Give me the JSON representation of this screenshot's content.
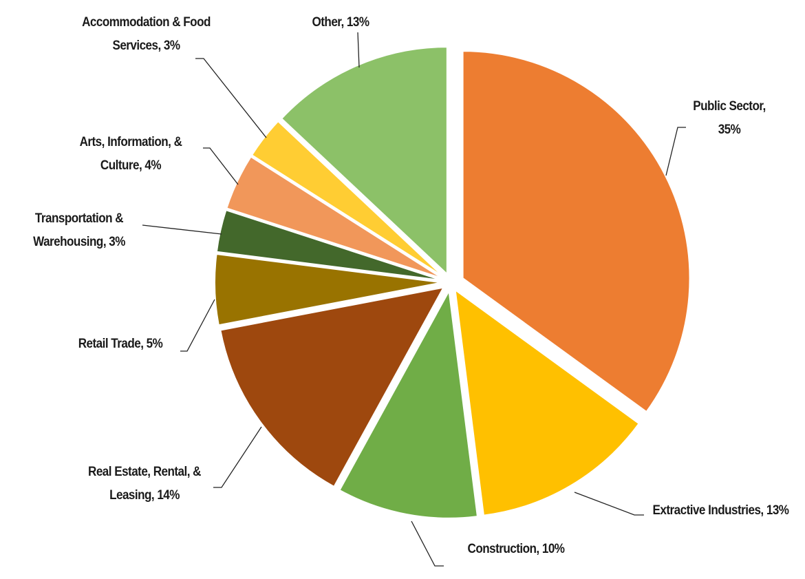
{
  "chart_data": {
    "type": "pie",
    "title": "",
    "start_angle": "12 o'clock",
    "direction": "clockwise",
    "exploded": true,
    "slices": [
      {
        "name": "Public Sector",
        "value": 35,
        "label": "Public Sector, 35%",
        "color": "#ED7D31"
      },
      {
        "name": "Extractive Industries",
        "value": 13,
        "label": "Extractive Industries, 13%",
        "color": "#FFC000"
      },
      {
        "name": "Construction",
        "value": 10,
        "label": "Construction, 10%",
        "color": "#70AD47"
      },
      {
        "name": "Real Estate, Rental, & Leasing",
        "value": 14,
        "label": "Real Estate, Rental, & Leasing, 14%",
        "color": "#9E480E"
      },
      {
        "name": "Retail Trade",
        "value": 5,
        "label": "Retail Trade, 5%",
        "color": "#997300"
      },
      {
        "name": "Transportation & Warehousing",
        "value": 3,
        "label": "Transportation & Warehousing, 3%",
        "color": "#43682B"
      },
      {
        "name": "Arts, Information, & Culture",
        "value": 4,
        "label": "Arts, Information, & Culture, 4%",
        "color": "#F1975A"
      },
      {
        "name": "Accommodation & Food Services",
        "value": 3,
        "label": "Accommodation & Food Services, 3%",
        "color": "#FFCD33"
      },
      {
        "name": "Other",
        "value": 13,
        "label": "Other, 13%",
        "color": "#8CC168"
      }
    ]
  }
}
